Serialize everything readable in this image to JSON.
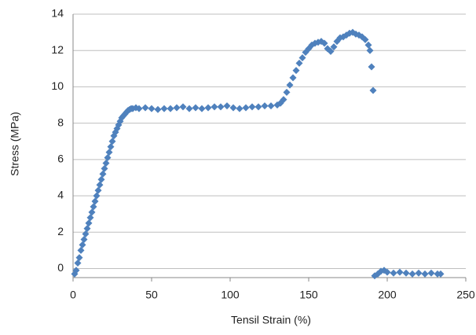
{
  "chart_data": {
    "type": "scatter",
    "x_label": "Tensil Strain (%)",
    "y_label": "Stress (MPa)",
    "series": [
      {
        "color": "#4f81bd",
        "x": [
          1,
          2,
          3,
          4,
          5,
          6,
          7,
          8,
          9,
          10,
          11,
          12,
          13,
          14,
          15,
          16,
          17,
          18,
          19,
          20,
          21,
          22,
          23,
          24,
          25,
          26,
          27,
          28,
          29,
          30,
          31,
          32,
          33,
          34,
          35,
          36,
          37,
          38,
          40,
          42,
          46,
          50,
          54,
          58,
          62,
          66,
          70,
          74,
          78,
          82,
          86,
          90,
          94,
          98,
          102,
          106,
          110,
          114,
          118,
          122,
          126,
          130,
          132,
          134,
          136,
          138,
          140,
          142,
          144,
          146,
          148,
          150,
          152,
          154,
          156,
          158,
          160,
          162,
          164,
          166,
          168,
          170,
          172,
          174,
          176,
          178,
          180,
          182,
          184,
          186,
          188,
          189,
          190,
          191,
          192,
          194,
          196,
          198,
          200,
          204,
          208,
          212,
          216,
          220,
          224,
          228,
          232,
          234
        ],
        "values": [
          -0.3,
          -0.1,
          0.3,
          0.6,
          1.0,
          1.3,
          1.6,
          1.9,
          2.2,
          2.5,
          2.8,
          3.1,
          3.4,
          3.7,
          4.0,
          4.3,
          4.6,
          4.9,
          5.2,
          5.5,
          5.8,
          6.1,
          6.4,
          6.7,
          7.0,
          7.3,
          7.5,
          7.7,
          7.9,
          8.1,
          8.3,
          8.4,
          8.5,
          8.6,
          8.7,
          8.75,
          8.8,
          8.8,
          8.85,
          8.8,
          8.85,
          8.8,
          8.75,
          8.8,
          8.8,
          8.85,
          8.9,
          8.8,
          8.85,
          8.8,
          8.85,
          8.9,
          8.9,
          8.95,
          8.85,
          8.8,
          8.85,
          8.9,
          8.9,
          8.95,
          8.95,
          9.0,
          9.1,
          9.3,
          9.7,
          10.1,
          10.5,
          10.9,
          11.3,
          11.6,
          11.9,
          12.1,
          12.3,
          12.4,
          12.45,
          12.5,
          12.4,
          12.1,
          11.95,
          12.2,
          12.5,
          12.7,
          12.75,
          12.85,
          12.95,
          13.0,
          12.9,
          12.85,
          12.75,
          12.6,
          12.3,
          12.0,
          11.1,
          9.8,
          -0.4,
          -0.3,
          -0.15,
          -0.1,
          -0.2,
          -0.25,
          -0.2,
          -0.25,
          -0.3,
          -0.25,
          -0.3,
          -0.25,
          -0.3,
          -0.3
        ]
      }
    ],
    "xlim": [
      0,
      250
    ],
    "xticks": [
      0,
      50,
      100,
      150,
      200,
      250
    ],
    "ylim": [
      -0.5,
      14
    ],
    "yticks": [
      0,
      2,
      4,
      6,
      8,
      10,
      12,
      14
    ],
    "grid": true
  }
}
